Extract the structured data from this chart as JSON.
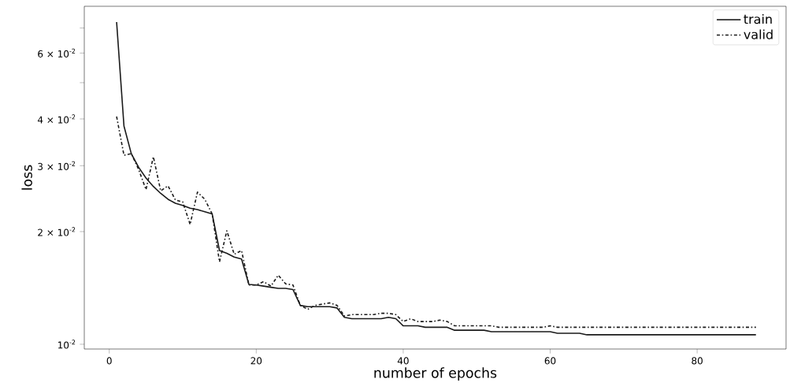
{
  "chart_data": {
    "type": "line",
    "xlabel": "number of epochs",
    "ylabel": "loss",
    "log": "y",
    "legend": "top right",
    "marker": "none",
    "xlim": [
      -3.4,
      92.1
    ],
    "ylim": [
      0.00971,
      0.08
    ],
    "xticks": [
      0,
      20,
      40,
      60,
      80
    ],
    "yticks": [
      {
        "value": 0.01,
        "label": "10$^{-2}$"
      },
      {
        "value": 0.02,
        "label": "2 × 10$^{-2}$"
      },
      {
        "value": 0.03,
        "label": "3 × 10$^{-2}$"
      },
      {
        "value": 0.04,
        "label": "4 × 10$^{-2}$"
      },
      {
        "value": 0.05,
        "label": null
      },
      {
        "value": 0.06,
        "label": "6 × 10$^{-2}$"
      },
      {
        "value": 0.07,
        "label": null
      }
    ],
    "x": [
      1,
      2,
      3,
      4,
      5,
      6,
      7,
      8,
      9,
      10,
      11,
      12,
      13,
      14,
      15,
      16,
      17,
      18,
      19,
      20,
      21,
      22,
      23,
      24,
      25,
      26,
      27,
      28,
      29,
      30,
      31,
      32,
      33,
      34,
      35,
      36,
      37,
      38,
      39,
      40,
      41,
      42,
      43,
      44,
      45,
      46,
      47,
      48,
      49,
      50,
      51,
      52,
      53,
      54,
      55,
      56,
      57,
      58,
      59,
      60,
      61,
      62,
      63,
      64,
      65,
      66,
      67,
      68,
      69,
      70,
      71,
      72,
      73,
      74,
      75,
      76,
      77,
      78,
      79,
      80,
      81,
      82,
      83,
      84,
      85,
      86,
      87,
      88
    ],
    "series": [
      {
        "name": "train",
        "color": "#1a1a1a",
        "line_style": "solid",
        "values": [
          0.0726,
          0.0383,
          0.0323,
          0.0297,
          0.0278,
          0.0264,
          0.0253,
          0.0244,
          0.0238,
          0.0235,
          0.0231,
          0.0229,
          0.0226,
          0.0223,
          0.0178,
          0.0175,
          0.0171,
          0.0169,
          0.01445,
          0.0144,
          0.0143,
          0.0142,
          0.0141,
          0.0141,
          0.014,
          0.0127,
          0.0126,
          0.0126,
          0.0126,
          0.0126,
          0.0125,
          0.0118,
          0.0117,
          0.0117,
          0.0117,
          0.0117,
          0.0117,
          0.0118,
          0.0117,
          0.0112,
          0.0112,
          0.0112,
          0.0111,
          0.0111,
          0.0111,
          0.0111,
          0.0109,
          0.0109,
          0.0109,
          0.0109,
          0.0109,
          0.0108,
          0.0108,
          0.0108,
          0.0108,
          0.0108,
          0.0108,
          0.0108,
          0.0108,
          0.0108,
          0.0107,
          0.0107,
          0.0107,
          0.0107,
          0.0106,
          0.0106,
          0.0106,
          0.0106,
          0.0106,
          0.0106,
          0.0106,
          0.0106,
          0.0106,
          0.0106,
          0.0106,
          0.0106,
          0.0106,
          0.0106,
          0.0106,
          0.0106,
          0.0106,
          0.0106,
          0.0106,
          0.0106,
          0.0106,
          0.0106,
          0.0106,
          0.0106
        ]
      },
      {
        "name": "valid",
        "color": "#1a1a1a",
        "line_style": "dashdot",
        "values": [
          0.0406,
          0.032,
          0.0323,
          0.0293,
          0.0259,
          0.0317,
          0.0257,
          0.0265,
          0.0243,
          0.024,
          0.0209,
          0.0255,
          0.0244,
          0.0223,
          0.0166,
          0.0201,
          0.0174,
          0.0178,
          0.0144,
          0.0144,
          0.0147,
          0.0143,
          0.0153,
          0.0145,
          0.0144,
          0.0127,
          0.0124,
          0.0127,
          0.0128,
          0.0129,
          0.0127,
          0.0119,
          0.012,
          0.012,
          0.012,
          0.012,
          0.0121,
          0.0121,
          0.012,
          0.0115,
          0.0117,
          0.0115,
          0.0115,
          0.0115,
          0.0116,
          0.0115,
          0.0112,
          0.0112,
          0.0112,
          0.0112,
          0.0112,
          0.0112,
          0.0111,
          0.0111,
          0.0111,
          0.0111,
          0.0111,
          0.0111,
          0.0111,
          0.0112,
          0.0111,
          0.0111,
          0.0111,
          0.0111,
          0.0111,
          0.0111,
          0.0111,
          0.0111,
          0.0111,
          0.0111,
          0.0111,
          0.0111,
          0.0111,
          0.0111,
          0.0111,
          0.0111,
          0.0111,
          0.0111,
          0.0111,
          0.0111,
          0.0111,
          0.0111,
          0.0111,
          0.0111,
          0.0111,
          0.0111,
          0.0111,
          0.0111
        ]
      }
    ]
  }
}
